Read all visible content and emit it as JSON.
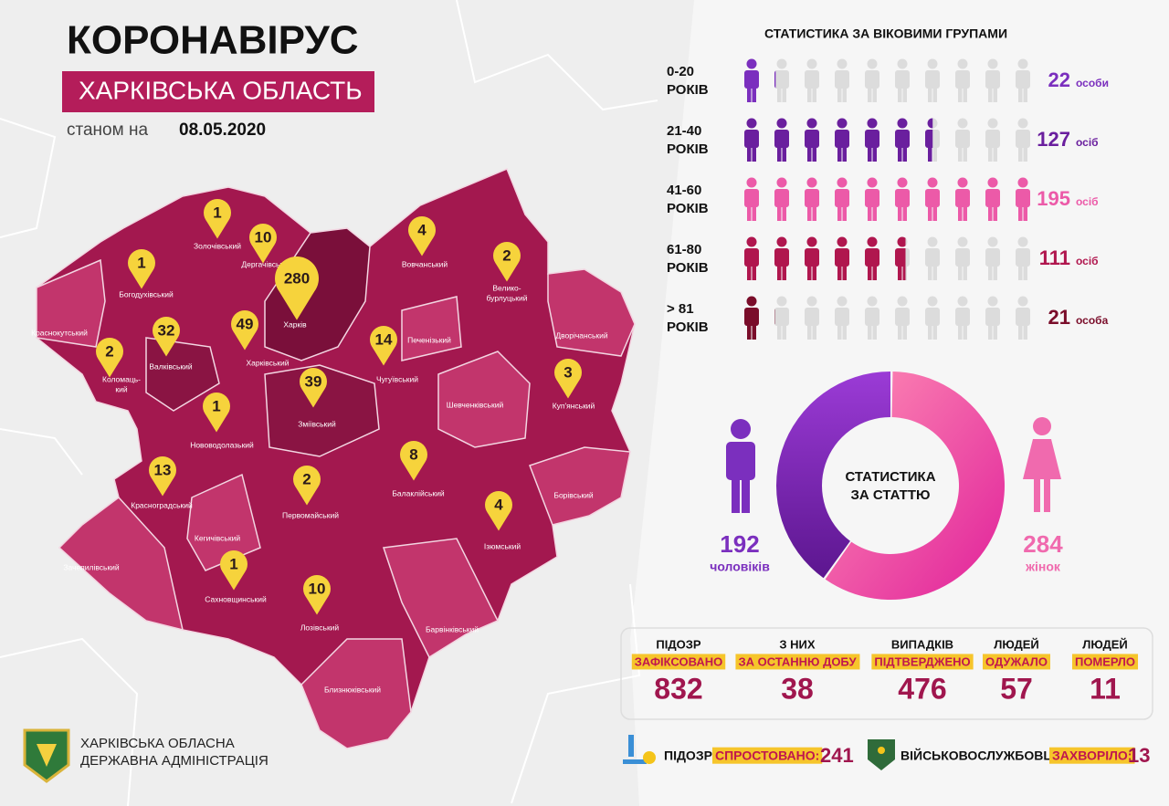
{
  "header": {
    "title": "КОРОНАВІРУС",
    "subtitle": "ХАРКІВСЬКА ОБЛАСТЬ",
    "date_prefix": "станом на",
    "date": "08.05.2020"
  },
  "map": {
    "districts": [
      {
        "name": "Краснокутський"
      },
      {
        "name": "Богодухівський",
        "cases": 1
      },
      {
        "name": "Золочівський",
        "cases": 1
      },
      {
        "name": "Дергачівський",
        "cases": 10
      },
      {
        "name": "Харків",
        "cases": 280
      },
      {
        "name": "Харківський",
        "cases": 49
      },
      {
        "name": "Валківський",
        "cases": 32
      },
      {
        "name": [
          "Коломаць-",
          "кий"
        ],
        "cases": 2
      },
      {
        "name": "Печенізький"
      },
      {
        "name": "Вовчанський",
        "cases": 4
      },
      {
        "name": [
          "Велико-",
          "бурлуцький"
        ],
        "cases": 2
      },
      {
        "name": "Дворічанський"
      },
      {
        "name": "Чугуївський",
        "cases": 14
      },
      {
        "name": "Зміївський",
        "cases": 39
      },
      {
        "name": "Нововодолазький",
        "cases": 1
      },
      {
        "name": "Шевченківський"
      },
      {
        "name": "Куп'янський",
        "cases": 3
      },
      {
        "name": "Балаклійський",
        "cases": 8
      },
      {
        "name": "Красноградський",
        "cases": 13
      },
      {
        "name": "Первомайський",
        "cases": 2
      },
      {
        "name": "Борівський"
      },
      {
        "name": "Ізюмський",
        "cases": 4
      },
      {
        "name": "Кегичівський"
      },
      {
        "name": "Зачепилівський"
      },
      {
        "name": "Сахновщинський",
        "cases": 1
      },
      {
        "name": "Лозівський",
        "cases": 10
      },
      {
        "name": "Барвінківський"
      },
      {
        "name": "Близнюківський"
      }
    ]
  },
  "age": {
    "title": "СТАТИСТИКА ЗА ВІКОВИМИ ГРУПАМИ",
    "groups": [
      {
        "range": "0-20",
        "unit": "РОКІВ",
        "value": 22,
        "value_unit": "особи",
        "color": "#7b2fbe"
      },
      {
        "range": "21-40",
        "unit": "РОКІВ",
        "value": 127,
        "value_unit": "осіб",
        "color": "#6a1f9e"
      },
      {
        "range": "41-60",
        "unit": "РОКІВ",
        "value": 195,
        "value_unit": "осіб",
        "color": "#ec5aa8"
      },
      {
        "range": "61-80",
        "unit": "РОКІВ",
        "value": 111,
        "value_unit": "осіб",
        "color": "#b0164e"
      },
      {
        "range": "> 81",
        "unit": "РОКІВ",
        "value": 21,
        "value_unit": "особа",
        "color": "#7a0d2a"
      }
    ]
  },
  "gender": {
    "title": [
      "СТАТИСТИКА",
      "ЗА СТАТТЮ"
    ],
    "men": {
      "value": 192,
      "label": "чоловіків",
      "color": "#7b2fbe"
    },
    "women": {
      "value": 284,
      "label": "жінок",
      "color": "#f06aae"
    }
  },
  "stats": [
    {
      "line1": "ПІДОЗР",
      "line2": "ЗАФІКСОВАНО",
      "value": 832
    },
    {
      "line1": "З НИХ",
      "line2": "ЗА ОСТАННЮ ДОБУ",
      "value": 38
    },
    {
      "line1": "ВИПАДКІВ",
      "line2": "ПІДТВЕРДЖЕНО",
      "value": 476
    },
    {
      "line1": "ЛЮДЕЙ",
      "line2": "ОДУЖАЛО",
      "value": 57
    },
    {
      "line1": "ЛЮДЕЙ",
      "line2": "ПОМЕРЛО",
      "value": 11
    }
  ],
  "footer": {
    "refuted": {
      "label": "ПІДОЗР",
      "highlight": "СПРОСТОВАНО:",
      "value": 241
    },
    "military": {
      "label": "ВІЙСЬКОВОСЛУЖБОВЦІВ",
      "highlight": "ЗАХВОРІЛО:",
      "value": 13
    }
  },
  "org": [
    "ХАРКІВСЬКА ОБЛАСНА",
    "ДЕРЖАВНА АДМІНІСТРАЦІЯ"
  ]
}
